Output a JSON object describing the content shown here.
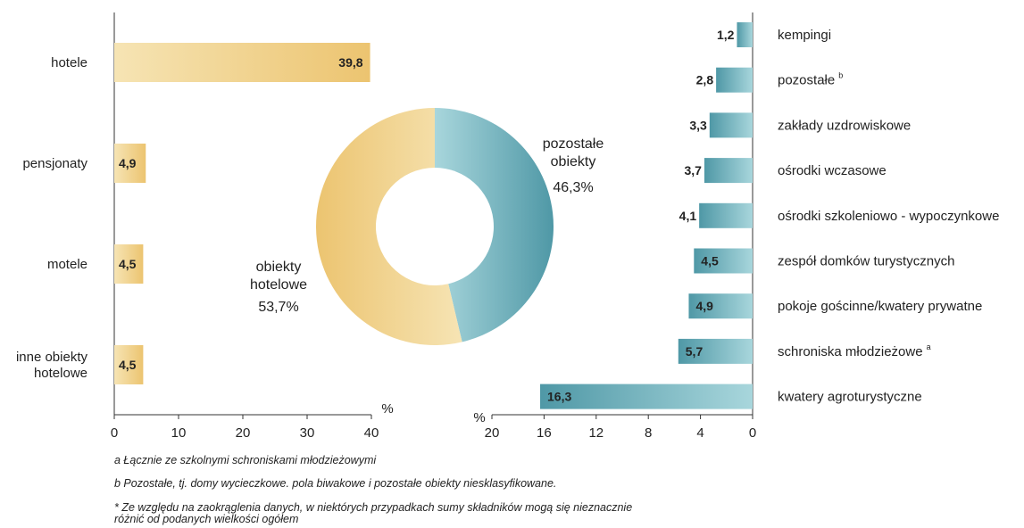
{
  "chart_data": [
    {
      "type": "bar",
      "orientation": "horizontal",
      "categories": [
        "hotele",
        "pensjonaty",
        "motele",
        "inne obiekty hotelowe"
      ],
      "values": [
        39.8,
        4.9,
        4.5,
        4.5
      ],
      "value_labels": [
        "39,8",
        "4,9",
        "4,5",
        "4,5"
      ],
      "xlim": [
        0,
        40
      ],
      "xticks": [
        "0",
        "10",
        "20",
        "30",
        "40"
      ],
      "unit": "%"
    },
    {
      "type": "pie",
      "slices": [
        {
          "label": "pozostałe obiekty",
          "value": 46.3,
          "value_label": "46,3%",
          "color": "#6fb5bf"
        },
        {
          "label": "obiekty hotelowe",
          "value": 53.7,
          "value_label": "53,7%",
          "color": "#eeca78"
        }
      ]
    },
    {
      "type": "bar",
      "orientation": "horizontal",
      "direction": "reversed",
      "categories": [
        "kempingi",
        "pozostałe",
        "zakłady uzdrowiskowe",
        "ośrodki wczasowe",
        "ośrodki szkoleniowo - wypoczynkowe",
        "zespół domków turystycznych",
        "pokoje gościnne/kwatery prywatne",
        "schroniska młodzieżowe",
        "kwatery agroturystyczne"
      ],
      "superscripts": [
        "",
        "b",
        "",
        "",
        "",
        "",
        "",
        "a",
        ""
      ],
      "values": [
        1.2,
        2.8,
        3.3,
        3.7,
        4.1,
        4.5,
        4.9,
        5.7,
        16.3
      ],
      "value_labels": [
        "1,2",
        "2,8",
        "3,3",
        "3,7",
        "4,1",
        "4,5",
        "4,9",
        "5,7",
        "16,3"
      ],
      "xlim": [
        0,
        20
      ],
      "xticks": [
        "20",
        "16",
        "12",
        "8",
        "4",
        "0"
      ],
      "unit": "%"
    }
  ],
  "colors": {
    "hotel_light": "#f6e4b4",
    "hotel_dark": "#ecc470",
    "other_light": "#a8d6dc",
    "other_dark": "#4f98a6"
  },
  "footnotes": {
    "a": "a Łącznie ze szkolnymi schroniskami młodzieżowymi",
    "b": "b Pozostałe, tj. domy wycieczkowe. pola biwakowe i pozostałe obiekty niesklasyfikowane.",
    "star_1": "* Ze względu na zaokrąglenia danych, w niektórych przypadkach sumy składników mogą się nieznacznie",
    "star_2": "różnić od podanych wielkości ogółem"
  }
}
